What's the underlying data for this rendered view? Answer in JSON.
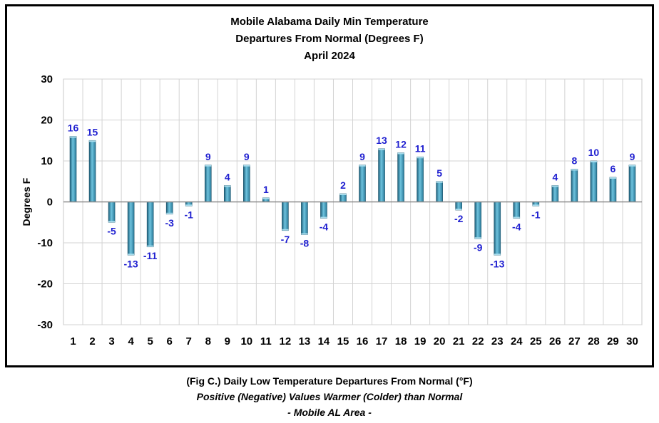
{
  "chart_data": {
    "type": "bar",
    "title": [
      "Mobile Alabama Daily Min Temperature",
      "Departures From Normal (Degrees F)",
      "April 2024"
    ],
    "xlabel": "",
    "ylabel": "Degrees F",
    "ylim": [
      -30,
      30
    ],
    "yticks": [
      30,
      20,
      10,
      0,
      -10,
      -20,
      -30
    ],
    "grid": true,
    "categories": [
      "1",
      "2",
      "3",
      "4",
      "5",
      "6",
      "7",
      "8",
      "9",
      "10",
      "11",
      "12",
      "13",
      "14",
      "15",
      "16",
      "17",
      "18",
      "19",
      "20",
      "21",
      "22",
      "23",
      "24",
      "25",
      "26",
      "27",
      "28",
      "29",
      "30"
    ],
    "values": [
      16,
      15,
      -5,
      -13,
      -11,
      -3,
      -1,
      9,
      4,
      9,
      1,
      -7,
      -8,
      -4,
      2,
      9,
      13,
      12,
      11,
      5,
      -2,
      -9,
      -13,
      -4,
      -1,
      4,
      8,
      10,
      6,
      9
    ],
    "bar_color": "#3a93b5",
    "label_color": "#1f1fd0"
  },
  "caption": {
    "line1": "(Fig C.) Daily Low Temperature Departures From Normal (°F)",
    "line2": "Positive (Negative) Values Warmer (Colder) than Normal",
    "line3": "- Mobile AL Area -"
  }
}
